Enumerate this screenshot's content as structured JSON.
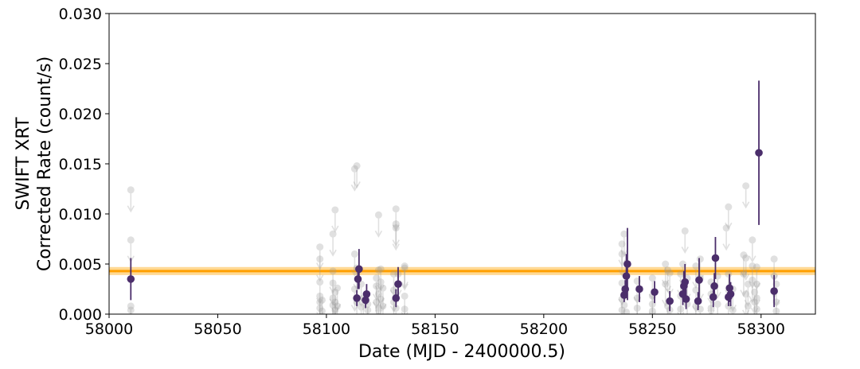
{
  "chart_data": {
    "type": "scatter",
    "title": "",
    "xlabel": "Date (MJD - 2400000.5)",
    "ylabel": [
      "SWIFT XRT",
      "Corrected Rate (count/s)"
    ],
    "xlim": [
      58000,
      58325
    ],
    "ylim": [
      0,
      0.03
    ],
    "xticks": [
      58000,
      58050,
      58100,
      58150,
      58200,
      58250,
      58300
    ],
    "yticks": [
      0.0,
      0.005,
      0.01,
      0.015,
      0.02,
      0.025,
      0.03
    ],
    "grid": false,
    "colors": {
      "detection": "#4b2e6b",
      "upper_limit": "#9a9a9a",
      "mean_line": "#ff9f00",
      "mean_band": "#ffc04d"
    },
    "mean_rate": {
      "value": 0.0043,
      "band": [
        0.0039,
        0.0047
      ]
    },
    "detections": [
      {
        "x": 58010,
        "y": 0.0035,
        "err": 0.0021
      },
      {
        "x": 58114,
        "y": 0.0016,
        "err": 0.0008
      },
      {
        "x": 58114.5,
        "y": 0.0035,
        "err": 0.001
      },
      {
        "x": 58115,
        "y": 0.0045,
        "err": 0.002
      },
      {
        "x": 58118,
        "y": 0.0014,
        "err": 0.0008
      },
      {
        "x": 58118.5,
        "y": 0.002,
        "err": 0.001
      },
      {
        "x": 58132,
        "y": 0.0016,
        "err": 0.0009
      },
      {
        "x": 58133,
        "y": 0.003,
        "err": 0.0017
      },
      {
        "x": 58237,
        "y": 0.0019,
        "err": 0.0007
      },
      {
        "x": 58237.5,
        "y": 0.0025,
        "err": 0.0009
      },
      {
        "x": 58238,
        "y": 0.0038,
        "err": 0.0022
      },
      {
        "x": 58238.5,
        "y": 0.005,
        "err": 0.0036
      },
      {
        "x": 58244,
        "y": 0.0025,
        "err": 0.0013
      },
      {
        "x": 58251,
        "y": 0.0022,
        "err": 0.0011
      },
      {
        "x": 58258,
        "y": 0.0013,
        "err": 0.001
      },
      {
        "x": 58264,
        "y": 0.002,
        "err": 0.0011
      },
      {
        "x": 58264.5,
        "y": 0.0028,
        "err": 0.0015
      },
      {
        "x": 58265,
        "y": 0.0032,
        "err": 0.0018
      },
      {
        "x": 58265.5,
        "y": 0.0015,
        "err": 0.001
      },
      {
        "x": 58271,
        "y": 0.0013,
        "err": 0.0009
      },
      {
        "x": 58271.5,
        "y": 0.0034,
        "err": 0.0022
      },
      {
        "x": 58278,
        "y": 0.0017,
        "err": 0.001
      },
      {
        "x": 58278.5,
        "y": 0.0028,
        "err": 0.0013
      },
      {
        "x": 58279,
        "y": 0.0056,
        "err": 0.0021
      },
      {
        "x": 58285,
        "y": 0.0017,
        "err": 0.0009
      },
      {
        "x": 58285.5,
        "y": 0.0026,
        "err": 0.0014
      },
      {
        "x": 58286,
        "y": 0.002,
        "err": 0.0012
      },
      {
        "x": 58299,
        "y": 0.0161,
        "err": 0.0072
      },
      {
        "x": 58306,
        "y": 0.0023,
        "err": 0.0016
      }
    ],
    "upper_limits": [
      {
        "x": 58010,
        "y": 0.0124
      },
      {
        "x": 58010,
        "y": 0.0074
      },
      {
        "x": 58010,
        "y": 0.0008
      },
      {
        "x": 58010,
        "y": 0.0004
      },
      {
        "x": 58097,
        "y": 0.0067
      },
      {
        "x": 58097,
        "y": 0.0055
      },
      {
        "x": 58097,
        "y": 0.0032
      },
      {
        "x": 58097,
        "y": 0.0018
      },
      {
        "x": 58097,
        "y": 0.0012
      },
      {
        "x": 58097,
        "y": 0.0006
      },
      {
        "x": 58098,
        "y": 0.0014
      },
      {
        "x": 58098,
        "y": 0.0003
      },
      {
        "x": 58103,
        "y": 0.008
      },
      {
        "x": 58103,
        "y": 0.0043
      },
      {
        "x": 58103,
        "y": 0.0031
      },
      {
        "x": 58103,
        "y": 0.0016
      },
      {
        "x": 58103,
        "y": 0.0009
      },
      {
        "x": 58104,
        "y": 0.0104
      },
      {
        "x": 58104,
        "y": 0.0022
      },
      {
        "x": 58104,
        "y": 0.0012
      },
      {
        "x": 58104,
        "y": 0.0004
      },
      {
        "x": 58105,
        "y": 0.0026
      },
      {
        "x": 58105,
        "y": 0.0008
      },
      {
        "x": 58113,
        "y": 0.0145
      },
      {
        "x": 58113,
        "y": 0.006
      },
      {
        "x": 58113,
        "y": 0.0025
      },
      {
        "x": 58114,
        "y": 0.0148
      },
      {
        "x": 58114,
        "y": 0.0046
      },
      {
        "x": 58114,
        "y": 0.0012
      },
      {
        "x": 58116,
        "y": 0.003
      },
      {
        "x": 58116,
        "y": 0.0007
      },
      {
        "x": 58117,
        "y": 0.0016
      },
      {
        "x": 58119,
        "y": 0.001
      },
      {
        "x": 58119,
        "y": 0.0004
      },
      {
        "x": 58123,
        "y": 0.0036
      },
      {
        "x": 58123,
        "y": 0.0028
      },
      {
        "x": 58123,
        "y": 0.0012
      },
      {
        "x": 58124,
        "y": 0.0099
      },
      {
        "x": 58124,
        "y": 0.0044
      },
      {
        "x": 58124,
        "y": 0.002
      },
      {
        "x": 58124,
        "y": 0.0006
      },
      {
        "x": 58125,
        "y": 0.0045
      },
      {
        "x": 58125,
        "y": 0.0032
      },
      {
        "x": 58125,
        "y": 0.0015
      },
      {
        "x": 58126,
        "y": 0.0026
      },
      {
        "x": 58126,
        "y": 0.0008
      },
      {
        "x": 58131,
        "y": 0.004
      },
      {
        "x": 58131,
        "y": 0.0024
      },
      {
        "x": 58131,
        "y": 0.0012
      },
      {
        "x": 58132,
        "y": 0.0105
      },
      {
        "x": 58132,
        "y": 0.009
      },
      {
        "x": 58132,
        "y": 0.0086
      },
      {
        "x": 58132,
        "y": 0.0006
      },
      {
        "x": 58133,
        "y": 0.004
      },
      {
        "x": 58136,
        "y": 0.0048
      },
      {
        "x": 58136,
        "y": 0.0046
      },
      {
        "x": 58136,
        "y": 0.0018
      },
      {
        "x": 58136,
        "y": 0.0005
      },
      {
        "x": 58236,
        "y": 0.007
      },
      {
        "x": 58236,
        "y": 0.006
      },
      {
        "x": 58236,
        "y": 0.0031
      },
      {
        "x": 58236,
        "y": 0.0015
      },
      {
        "x": 58236,
        "y": 0.0004
      },
      {
        "x": 58237,
        "y": 0.008
      },
      {
        "x": 58237,
        "y": 0.0009
      },
      {
        "x": 58238,
        "y": 0.0002
      },
      {
        "x": 58243,
        "y": 0.0033
      },
      {
        "x": 58243,
        "y": 0.0016
      },
      {
        "x": 58243,
        "y": 0.0006
      },
      {
        "x": 58250,
        "y": 0.0036
      },
      {
        "x": 58250,
        "y": 0.0018
      },
      {
        "x": 58250,
        "y": 0.001
      },
      {
        "x": 58250,
        "y": 0.0003
      },
      {
        "x": 58256,
        "y": 0.005
      },
      {
        "x": 58256,
        "y": 0.003
      },
      {
        "x": 58257,
        "y": 0.0044
      },
      {
        "x": 58257,
        "y": 0.0008
      },
      {
        "x": 58258,
        "y": 0.0041
      },
      {
        "x": 58258,
        "y": 0.0004
      },
      {
        "x": 58263,
        "y": 0.004
      },
      {
        "x": 58263,
        "y": 0.0018
      },
      {
        "x": 58263,
        "y": 0.0005
      },
      {
        "x": 58264,
        "y": 0.005
      },
      {
        "x": 58265,
        "y": 0.0083
      },
      {
        "x": 58266,
        "y": 0.0036
      },
      {
        "x": 58266,
        "y": 0.001
      },
      {
        "x": 58270,
        "y": 0.0048
      },
      {
        "x": 58270,
        "y": 0.0024
      },
      {
        "x": 58270,
        "y": 0.0008
      },
      {
        "x": 58272,
        "y": 0.0055
      },
      {
        "x": 58272,
        "y": 0.0036
      },
      {
        "x": 58272,
        "y": 0.0005
      },
      {
        "x": 58277,
        "y": 0.0032
      },
      {
        "x": 58277,
        "y": 0.002
      },
      {
        "x": 58277,
        "y": 0.0006
      },
      {
        "x": 58280,
        "y": 0.0038
      },
      {
        "x": 58280,
        "y": 0.001
      },
      {
        "x": 58284,
        "y": 0.0086
      },
      {
        "x": 58285,
        "y": 0.0107
      },
      {
        "x": 58285,
        "y": 0.004
      },
      {
        "x": 58285,
        "y": 0.0008
      },
      {
        "x": 58287,
        "y": 0.0025
      },
      {
        "x": 58287,
        "y": 0.0004
      },
      {
        "x": 58292,
        "y": 0.0059
      },
      {
        "x": 58292,
        "y": 0.004
      },
      {
        "x": 58293,
        "y": 0.0128
      },
      {
        "x": 58293,
        "y": 0.0056
      },
      {
        "x": 58293,
        "y": 0.002
      },
      {
        "x": 58294,
        "y": 0.003
      },
      {
        "x": 58294,
        "y": 0.0008
      },
      {
        "x": 58296,
        "y": 0.0074
      },
      {
        "x": 58296,
        "y": 0.0048
      },
      {
        "x": 58296,
        "y": 0.0034
      },
      {
        "x": 58297,
        "y": 0.0022
      },
      {
        "x": 58297,
        "y": 0.0012
      },
      {
        "x": 58298,
        "y": 0.0047
      },
      {
        "x": 58298,
        "y": 0.003
      },
      {
        "x": 58298,
        "y": 0.0016
      },
      {
        "x": 58298,
        "y": 0.0005
      },
      {
        "x": 58306,
        "y": 0.0055
      },
      {
        "x": 58306,
        "y": 0.0038
      },
      {
        "x": 58307,
        "y": 0.003
      },
      {
        "x": 58307,
        "y": 0.0012
      },
      {
        "x": 58307,
        "y": 0.0003
      }
    ]
  }
}
